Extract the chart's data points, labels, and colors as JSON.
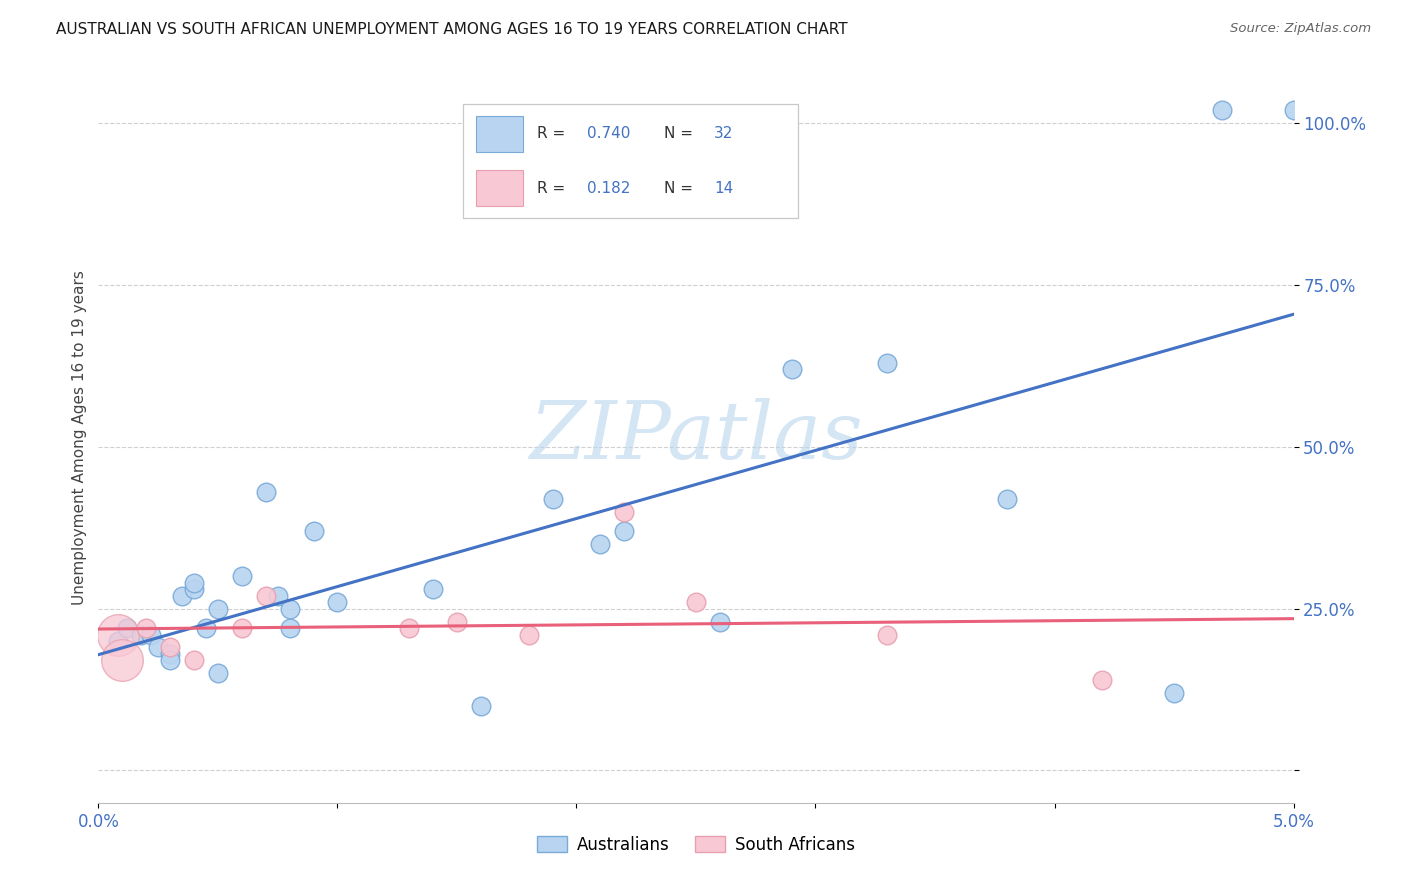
{
  "title": "AUSTRALIAN VS SOUTH AFRICAN UNEMPLOYMENT AMONG AGES 16 TO 19 YEARS CORRELATION CHART",
  "source": "Source: ZipAtlas.com",
  "ylabel": "Unemployment Among Ages 16 to 19 years",
  "xlim": [
    0.0,
    0.05
  ],
  "ylim": [
    -0.05,
    1.08
  ],
  "yticks": [
    0.0,
    0.25,
    0.5,
    0.75,
    1.0
  ],
  "ytick_labels": [
    "",
    "25.0%",
    "50.0%",
    "75.0%",
    "100.0%"
  ],
  "xticks": [
    0.0,
    0.01,
    0.02,
    0.03,
    0.04,
    0.05
  ],
  "xtick_labels": [
    "0.0%",
    "",
    "",
    "",
    "",
    "5.0%"
  ],
  "title_color": "#1a1a1a",
  "source_color": "#666666",
  "watermark_zip": "ZIP",
  "watermark_atlas": "atlas",
  "watermark_color": "#b8d4ee",
  "aus_line_color": "#4472c4",
  "sa_line_color": "#e8607a",
  "aus_marker_facecolor": "#b8d4f0",
  "aus_marker_edgecolor": "#7aaad8",
  "sa_marker_facecolor": "#f8c8d4",
  "sa_marker_edgecolor": "#e8a0b0",
  "grid_color": "#d0d0d0",
  "background_color": "#ffffff",
  "aus_x": [
    0.0008,
    0.0012,
    0.0018,
    0.0022,
    0.0025,
    0.003,
    0.003,
    0.0035,
    0.004,
    0.004,
    0.0045,
    0.005,
    0.005,
    0.006,
    0.007,
    0.0075,
    0.008,
    0.008,
    0.009,
    0.01,
    0.014,
    0.016,
    0.019,
    0.021,
    0.022,
    0.026,
    0.029,
    0.033,
    0.038,
    0.045,
    0.047,
    0.05
  ],
  "aus_y": [
    0.2,
    0.22,
    0.21,
    0.21,
    0.19,
    0.18,
    0.17,
    0.27,
    0.28,
    0.29,
    0.22,
    0.25,
    0.15,
    0.3,
    0.43,
    0.27,
    0.22,
    0.25,
    0.37,
    0.26,
    0.28,
    0.1,
    0.42,
    0.35,
    0.37,
    0.23,
    0.62,
    0.63,
    0.42,
    0.12,
    1.02,
    1.02
  ],
  "sa_x": [
    0.0008,
    0.001,
    0.002,
    0.003,
    0.004,
    0.006,
    0.007,
    0.013,
    0.015,
    0.018,
    0.022,
    0.025,
    0.033,
    0.042
  ],
  "sa_y": [
    0.21,
    0.17,
    0.22,
    0.19,
    0.17,
    0.22,
    0.27,
    0.22,
    0.23,
    0.21,
    0.4,
    0.26,
    0.21,
    0.14
  ],
  "aus_R": "0.740",
  "aus_N": "32",
  "sa_R": "0.182",
  "sa_N": "14",
  "val_color": "#4472c4",
  "label_color": "#333333"
}
